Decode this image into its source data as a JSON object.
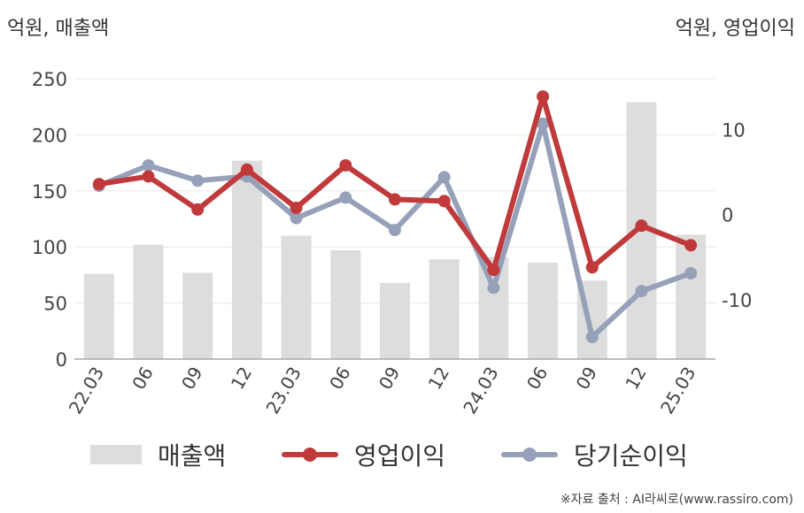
{
  "unit_left": "억원, 매출액",
  "unit_right": "억원, 영업이익",
  "source": "※자료 출처 : AI라씨로(www.rassiro.com)",
  "colors": {
    "revenue": "#dddddd",
    "operating_profit": "#c0393b",
    "net_income": "#96a1b9",
    "grid": "#e8e8e8",
    "axis": "#aaaaaa"
  },
  "legend": [
    {
      "label": "매출액",
      "kind": "bar"
    },
    {
      "label": "영업이익",
      "kind": "line"
    },
    {
      "label": "당기순이익",
      "kind": "line"
    }
  ],
  "chart_data": {
    "type": "bar+line",
    "categories": [
      "22.03",
      "06",
      "09",
      "12",
      "23.03",
      "06",
      "09",
      "12",
      "24.03",
      "06",
      "09",
      "12",
      "25.03"
    ],
    "left_axis": {
      "ylim": [
        0,
        250
      ],
      "ticks": [
        0,
        50,
        100,
        150,
        200,
        250
      ]
    },
    "right_axis": {
      "ylim": [
        -17,
        16
      ],
      "ticks": [
        -10,
        0,
        10
      ]
    },
    "series": [
      {
        "name": "매출액",
        "type": "bar",
        "axis": "left",
        "values": [
          76,
          102,
          77,
          177,
          110,
          97,
          68,
          89,
          91,
          86,
          70,
          229,
          111
        ]
      },
      {
        "name": "영업이익",
        "type": "line",
        "axis": "right",
        "values": [
          3.6,
          4.5,
          0.6,
          5.3,
          0.8,
          5.8,
          1.8,
          1.6,
          -6.5,
          13.9,
          -6.2,
          -1.3,
          -3.6
        ]
      },
      {
        "name": "당기순이익",
        "type": "line",
        "axis": "right",
        "values": [
          3.4,
          5.8,
          4.0,
          4.5,
          -0.4,
          2.0,
          -1.8,
          4.4,
          -8.6,
          10.7,
          -14.4,
          -9.0,
          -6.9
        ]
      }
    ]
  }
}
